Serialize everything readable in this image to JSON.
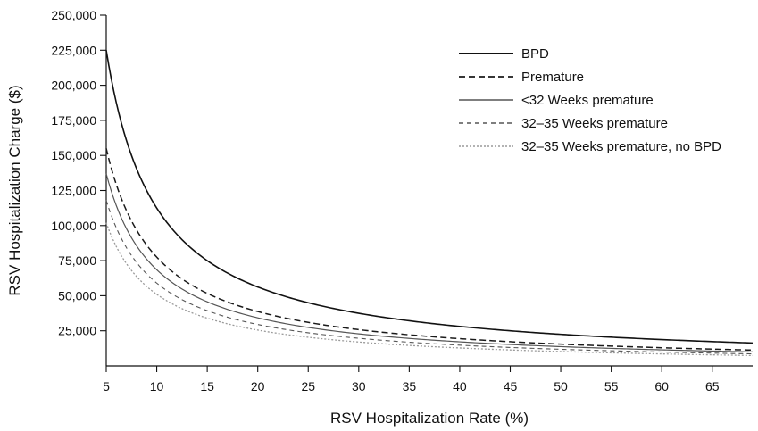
{
  "chart_data": {
    "type": "line",
    "xlabel": "RSV Hospitalization Rate (%)",
    "ylabel": "RSV Hospitalization Charge ($)",
    "xlim": [
      5,
      69
    ],
    "ylim": [
      0,
      250000
    ],
    "x_ticks": [
      "5",
      "10",
      "15",
      "20",
      "25",
      "30",
      "35",
      "40",
      "45",
      "50",
      "55",
      "60",
      "65"
    ],
    "y_ticks": [
      "25,000",
      "50,000",
      "75,000",
      "100,000",
      "125,000",
      "150,000",
      "175,000",
      "200,000",
      "225,000",
      "250,000"
    ],
    "grid": false,
    "legend_position": "top-right",
    "x": [
      5,
      7.5,
      10,
      15,
      20,
      25,
      30,
      35,
      40,
      45,
      50,
      55,
      60,
      65,
      69
    ],
    "series": [
      {
        "name": "BPD",
        "color": "#111111",
        "dash": "solid",
        "width": 1.6,
        "values": [
          225000,
          150000,
          112500,
          75000,
          56250,
          45000,
          37500,
          32143,
          28125,
          25000,
          22500,
          20455,
          18750,
          17308,
          16304
        ]
      },
      {
        "name": "Premature",
        "color": "#1a1a1a",
        "dash": "dashed",
        "width": 1.5,
        "values": [
          155000,
          103333,
          77500,
          51667,
          38750,
          31000,
          25833,
          22143,
          19375,
          17222,
          15500,
          14091,
          12917,
          11923,
          11232
        ]
      },
      {
        "name": "<32 Weeks premature",
        "color": "#555555",
        "dash": "solid",
        "width": 1.2,
        "values": [
          137000,
          91333,
          68500,
          45667,
          34250,
          27400,
          22833,
          19571,
          17125,
          15222,
          13700,
          12455,
          11417,
          10538,
          9928
        ]
      },
      {
        "name": "32–35 Weeks premature",
        "color": "#555555",
        "dash": "dashed-thin",
        "width": 1.1,
        "values": [
          118000,
          78667,
          59000,
          39333,
          29500,
          23600,
          19667,
          16857,
          14750,
          13111,
          11800,
          10727,
          9833,
          9077,
          8551
        ]
      },
      {
        "name": "32–35 Weeks premature, no BPD",
        "color": "#9a9a9a",
        "dash": "dotted",
        "width": 1.3,
        "values": [
          102000,
          68000,
          51000,
          34000,
          25500,
          20400,
          17000,
          14571,
          12750,
          11333,
          10200,
          9273,
          8500,
          7846,
          7391
        ]
      }
    ]
  }
}
